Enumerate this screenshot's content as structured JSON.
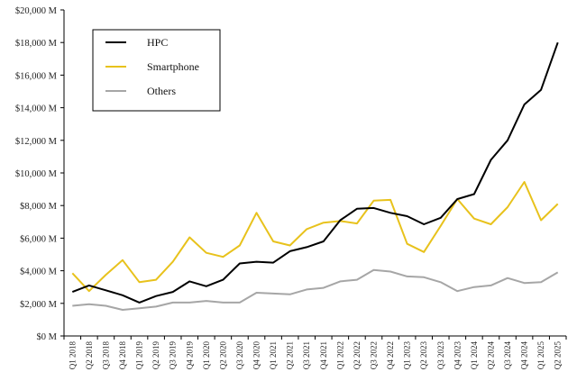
{
  "chart_data": {
    "type": "line",
    "title": "",
    "xlabel": "",
    "ylabel": "",
    "categories": [
      "Q1 2018",
      "Q2 2018",
      "Q3 2018",
      "Q4 2018",
      "Q1 2019",
      "Q2 2019",
      "Q3 2019",
      "Q4 2019",
      "Q1 2020",
      "Q2 2020",
      "Q3 2020",
      "Q4 2020",
      "Q1 2021",
      "Q2 2021",
      "Q3 2021",
      "Q4 2021",
      "Q1 2022",
      "Q2 2022",
      "Q3 2022",
      "Q4 2022",
      "Q1 2023",
      "Q2 2023",
      "Q3 2023",
      "Q4 2023",
      "Q1 2024",
      "Q2 2024",
      "Q3 2024",
      "Q4 2024",
      "Q1 2025",
      "Q2 2025"
    ],
    "ylim": [
      0,
      20000
    ],
    "yticks": [
      0,
      2000,
      4000,
      6000,
      8000,
      10000,
      12000,
      14000,
      16000,
      18000,
      20000
    ],
    "ytick_labels": [
      "$0 M",
      "$2,000 M",
      "$4,000 M",
      "$6,000 M",
      "$8,000 M",
      "$10,000 M",
      "$12,000 M",
      "$14,000 M",
      "$16,000 M",
      "$18,000 M",
      "$20,000 M"
    ],
    "grid": false,
    "legend_position": "top-left",
    "series": [
      {
        "name": "HPC",
        "color": "#000000",
        "values": [
          2700,
          3100,
          2800,
          2500,
          2050,
          2450,
          2700,
          3350,
          3050,
          3450,
          4450,
          4550,
          4500,
          5200,
          5450,
          5800,
          7100,
          7800,
          7850,
          7550,
          7350,
          6850,
          7250,
          8400,
          8700,
          10800,
          12000,
          14200,
          15100,
          18000
        ]
      },
      {
        "name": "Smartphone",
        "color": "#e8c21c",
        "values": [
          3850,
          2750,
          3750,
          4650,
          3300,
          3450,
          4550,
          6050,
          5100,
          4850,
          5550,
          7550,
          5800,
          5550,
          6550,
          6950,
          7050,
          6900,
          8300,
          8350,
          5650,
          5150,
          6750,
          8400,
          7200,
          6850,
          7900,
          9450,
          7100,
          8100
        ]
      },
      {
        "name": "Others",
        "color": "#a6a6a6",
        "values": [
          1850,
          1950,
          1850,
          1600,
          1700,
          1800,
          2050,
          2050,
          2150,
          2050,
          2050,
          2650,
          2600,
          2550,
          2850,
          2950,
          3350,
          3450,
          4050,
          3950,
          3650,
          3600,
          3300,
          2750,
          3000,
          3100,
          3550,
          3250,
          3300,
          3900
        ]
      }
    ]
  }
}
